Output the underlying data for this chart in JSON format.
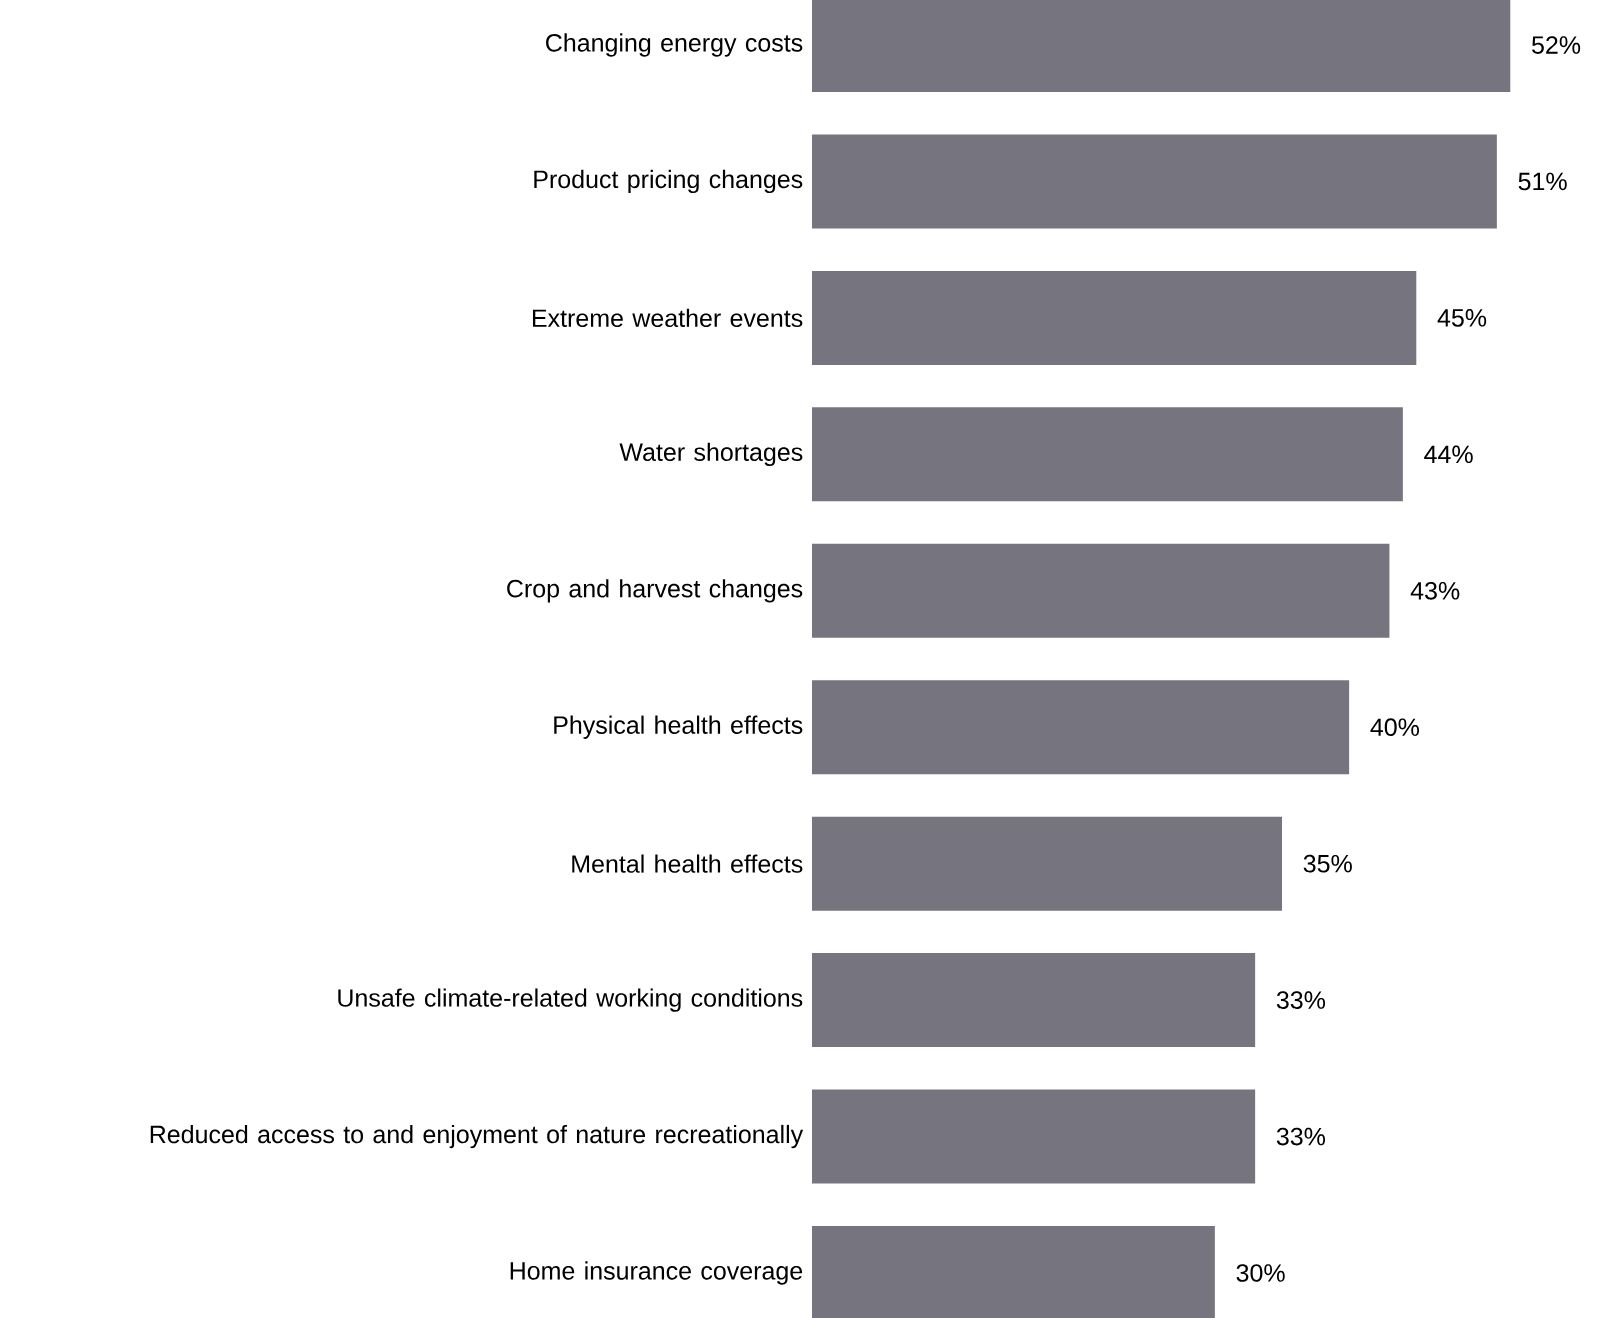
{
  "chart_data": {
    "type": "bar",
    "orientation": "horizontal",
    "color": "#76757f",
    "categories": [
      "Changing energy costs",
      "Product pricing changes",
      "Extreme weather events",
      "Water shortages",
      "Crop and harvest changes",
      "Physical health effects",
      "Mental health effects",
      "Unsafe climate-related working conditions",
      "Reduced access to and enjoyment of nature recreationally",
      "Home insurance coverage"
    ],
    "values": [
      52,
      51,
      45,
      44,
      43,
      40,
      35,
      33,
      33,
      30
    ],
    "value_labels": [
      "52%",
      "51%",
      "45%",
      "44%",
      "43%",
      "40%",
      "35%",
      "33%",
      "33%",
      "30%"
    ]
  }
}
